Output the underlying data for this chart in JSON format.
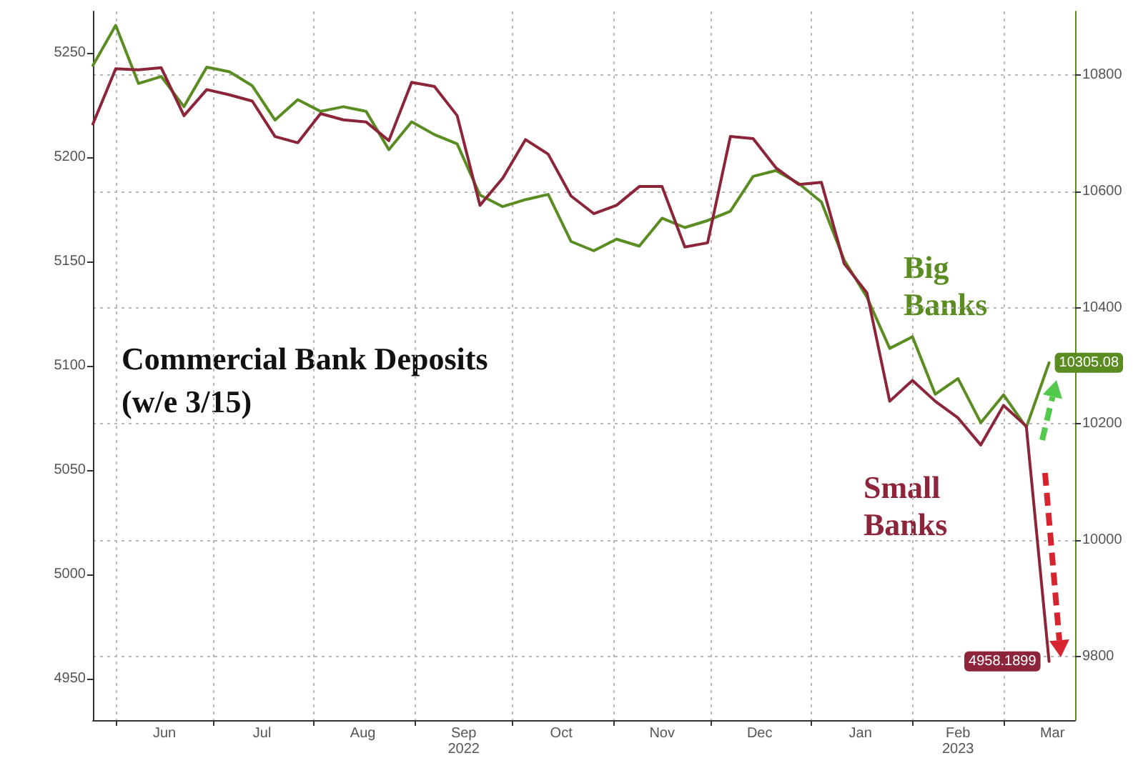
{
  "chart_data": {
    "type": "line",
    "title": "Commercial Bank Deposits",
    "subtitle": "(w/e 3/15)",
    "x": [
      "2022-05-25",
      "2022-06-01",
      "2022-06-08",
      "2022-06-15",
      "2022-06-22",
      "2022-06-29",
      "2022-07-06",
      "2022-07-13",
      "2022-07-20",
      "2022-07-27",
      "2022-08-03",
      "2022-08-10",
      "2022-08-17",
      "2022-08-24",
      "2022-08-31",
      "2022-09-07",
      "2022-09-14",
      "2022-09-21",
      "2022-09-28",
      "2022-10-05",
      "2022-10-12",
      "2022-10-19",
      "2022-10-26",
      "2022-11-02",
      "2022-11-09",
      "2022-11-16",
      "2022-11-23",
      "2022-11-30",
      "2022-12-07",
      "2022-12-14",
      "2022-12-21",
      "2022-12-28",
      "2023-01-04",
      "2023-01-11",
      "2023-01-18",
      "2023-01-25",
      "2023-02-01",
      "2023-02-08",
      "2023-02-15",
      "2023-02-22",
      "2023-03-01",
      "2023-03-08",
      "2023-03-15"
    ],
    "series": [
      {
        "name": "Big Banks",
        "color": "#5b8c22",
        "axis": "y2",
        "values": [
          10817,
          10886,
          10786,
          10798,
          10746,
          10814,
          10806,
          10782,
          10723,
          10758,
          10738,
          10746,
          10738,
          10672,
          10720,
          10698,
          10682,
          10594,
          10574,
          10586,
          10595,
          10514,
          10498,
          10518,
          10506,
          10554,
          10538,
          10550,
          10566,
          10626,
          10636,
          10614,
          10582,
          10482,
          10418,
          10330,
          10350,
          10251,
          10278,
          10202,
          10250,
          10194,
          10305.08
        ],
        "value_labels": [
          null,
          null,
          null,
          null,
          null,
          null,
          null,
          null,
          null,
          null,
          null,
          null,
          null,
          null,
          null,
          null,
          null,
          null,
          null,
          null,
          null,
          null,
          null,
          null,
          null,
          null,
          null,
          null,
          null,
          null,
          null,
          null,
          null,
          null,
          null,
          null,
          null,
          null,
          null,
          null,
          null,
          null,
          "10305.08"
        ]
      },
      {
        "name": "Small Banks",
        "color": "#8c2539",
        "axis": "y",
        "values": [
          5216,
          5242.5,
          5242,
          5243,
          5220,
          5232.5,
          5230,
          5227,
          5210,
          5207,
          5221,
          5218,
          5217,
          5208,
          5236,
          5234,
          5220,
          5177,
          5190,
          5208.5,
          5201.5,
          5181.5,
          5173,
          5177,
          5186,
          5186,
          5157,
          5159,
          5210,
          5209,
          5195,
          5187,
          5188,
          5149,
          5135,
          5083,
          5093,
          5083,
          5075,
          5062,
          5081,
          5071,
          4958.1899
        ],
        "value_labels": [
          null,
          null,
          null,
          null,
          null,
          null,
          null,
          null,
          null,
          null,
          null,
          null,
          null,
          null,
          null,
          null,
          null,
          null,
          null,
          null,
          null,
          null,
          null,
          null,
          null,
          null,
          null,
          null,
          null,
          null,
          null,
          null,
          null,
          null,
          null,
          null,
          null,
          null,
          null,
          null,
          null,
          null,
          "4958.1899"
        ]
      }
    ],
    "xlim": [
      "2022-05-25",
      "2023-03-23"
    ],
    "xticks": [
      {
        "value": "2022-06-01",
        "label": null
      },
      {
        "value": "2022-06-16",
        "label": "Jun"
      },
      {
        "value": "2022-07-01",
        "label": null
      },
      {
        "value": "2022-07-16",
        "label": "Jul"
      },
      {
        "value": "2022-08-01",
        "label": null
      },
      {
        "value": "2022-08-16",
        "label": "Aug"
      },
      {
        "value": "2022-09-01",
        "label": null
      },
      {
        "value": "2022-09-16",
        "label": "Sep\n2022"
      },
      {
        "value": "2022-10-01",
        "label": null
      },
      {
        "value": "2022-10-16",
        "label": "Oct"
      },
      {
        "value": "2022-11-01",
        "label": null
      },
      {
        "value": "2022-11-16",
        "label": "Nov"
      },
      {
        "value": "2022-12-01",
        "label": null
      },
      {
        "value": "2022-12-16",
        "label": "Dec"
      },
      {
        "value": "2023-01-01",
        "label": null
      },
      {
        "value": "2023-01-16",
        "label": "Jan"
      },
      {
        "value": "2023-02-01",
        "label": null
      },
      {
        "value": "2023-02-15",
        "label": "Feb\n2023"
      },
      {
        "value": "2023-03-01",
        "label": null
      },
      {
        "value": "2023-03-16",
        "label": "Mar"
      }
    ],
    "ylim": [
      4930,
      5270
    ],
    "yticks": [
      4950,
      5000,
      5050,
      5100,
      5150,
      5200,
      5250
    ],
    "y2lim": [
      9690,
      10910
    ],
    "y2ticks": [
      9800,
      10000,
      10200,
      10400,
      10600,
      10800
    ],
    "grid": true,
    "legend": false,
    "marker": "none",
    "line_style": "solid"
  }
}
